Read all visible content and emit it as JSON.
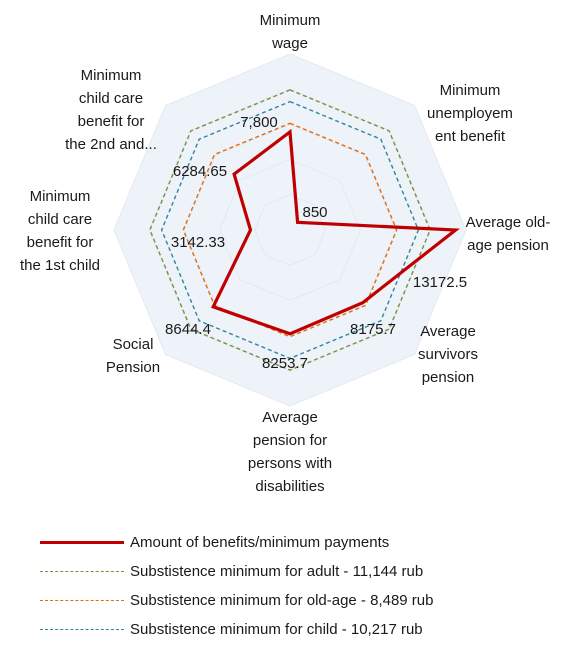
{
  "chart_data": {
    "type": "radar",
    "axes": [
      [
        "Minimum",
        "wage"
      ],
      [
        "Minimum",
        "unemployem",
        "ent benefit"
      ],
      [
        "Average old-",
        "age pension"
      ],
      [
        "Average",
        "survivors",
        "pension"
      ],
      [
        "Average",
        "pension for",
        "persons with",
        "disabilities"
      ],
      [
        "Social",
        "Pension"
      ],
      [
        "Minimum",
        "child care",
        "benefit for",
        "the 1st child"
      ],
      [
        "Minimum",
        "child care",
        "benefit for",
        "the 2nd and..."
      ]
    ],
    "rmax": 14000,
    "series": [
      {
        "name": "Amount of benefits/minimum payments",
        "values": [
          7800,
          850,
          13172.5,
          8175.7,
          8253.7,
          8644.4,
          3142.33,
          6284.65
        ],
        "data_labels": [
          "7,800",
          "850",
          "13172.5",
          "8175.7",
          "8253.7",
          "8644.4",
          "3142.33",
          "6284.65"
        ],
        "color": "#c00000",
        "style": "solid"
      },
      {
        "name": "Substistence minimum for adult - 11,144 rub",
        "values": [
          11144,
          11144,
          11144,
          11144,
          11144,
          11144,
          11144,
          11144
        ],
        "color": "#77933c",
        "style": "dashed"
      },
      {
        "name": "Substistence minimum for old-age -  8,489 rub",
        "values": [
          8489,
          8489,
          8489,
          8489,
          8489,
          8489,
          8489,
          8489
        ],
        "color": "#e46c0a",
        "style": "dashed"
      },
      {
        "name": "Substistence minimum for child - 10,217 rub",
        "values": [
          10217,
          10217,
          10217,
          10217,
          10217,
          10217,
          10217,
          10217
        ],
        "color": "#31859c",
        "style": "dashed"
      }
    ],
    "grid_fill": "#eef2f9",
    "legend": "bottom"
  }
}
